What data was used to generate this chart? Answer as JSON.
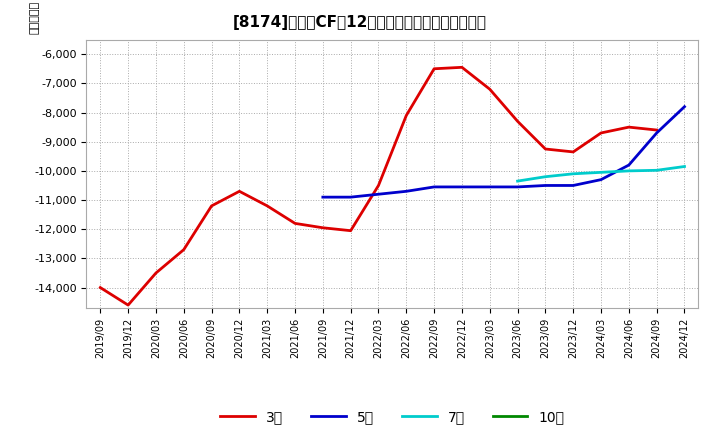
{
  "title": "[8174]　投賄CFの12か月移動合計の平均値の推移",
  "ylabel": "（百万円）",
  "ylim": [
    -14700,
    -5500
  ],
  "yticks": [
    -14000,
    -13000,
    -12000,
    -11000,
    -10000,
    -9000,
    -8000,
    -7000,
    -6000
  ],
  "background_color": "#ffffff",
  "plot_bg_color": "#ffffff",
  "grid_color": "#aaaaaa",
  "series": {
    "3year": {
      "color": "#dd0000",
      "label": "3年",
      "x": [
        "2019/09",
        "2019/12",
        "2020/03",
        "2020/06",
        "2020/09",
        "2020/12",
        "2021/03",
        "2021/06",
        "2021/09",
        "2021/12",
        "2022/03",
        "2022/06",
        "2022/09",
        "2022/12",
        "2023/03",
        "2023/06",
        "2023/09",
        "2023/12",
        "2024/03",
        "2024/06",
        "2024/09"
      ],
      "y": [
        -14000,
        -14600,
        -13500,
        -12700,
        -11200,
        -10700,
        -11200,
        -11800,
        -11950,
        -12050,
        -10500,
        -8100,
        -6500,
        -6450,
        -7200,
        -8300,
        -9250,
        -9350,
        -8700,
        -8500,
        -8600
      ]
    },
    "5year": {
      "color": "#0000cc",
      "label": "5年",
      "x": [
        "2021/09",
        "2021/12",
        "2022/03",
        "2022/06",
        "2022/09",
        "2022/12",
        "2023/03",
        "2023/06",
        "2023/09",
        "2023/12",
        "2024/03",
        "2024/06",
        "2024/09",
        "2024/12"
      ],
      "y": [
        -10900,
        -10900,
        -10800,
        -10700,
        -10550,
        -10550,
        -10550,
        -10550,
        -10500,
        -10500,
        -10300,
        -9800,
        -8700,
        -7800
      ]
    },
    "7year": {
      "color": "#00cccc",
      "label": "7年",
      "x": [
        "2023/06",
        "2023/09",
        "2023/12",
        "2024/03",
        "2024/06",
        "2024/09",
        "2024/12"
      ],
      "y": [
        -10350,
        -10200,
        -10100,
        -10050,
        -10000,
        -9980,
        -9850
      ]
    },
    "10year": {
      "color": "#008800",
      "label": "10年",
      "x": [],
      "y": []
    }
  },
  "xtick_labels": [
    "2019/09",
    "2019/12",
    "2020/03",
    "2020/06",
    "2020/09",
    "2020/12",
    "2021/03",
    "2021/06",
    "2021/09",
    "2021/12",
    "2022/03",
    "2022/06",
    "2022/09",
    "2022/12",
    "2023/03",
    "2023/06",
    "2023/09",
    "2023/12",
    "2024/03",
    "2024/06",
    "2024/09",
    "2024/12"
  ]
}
